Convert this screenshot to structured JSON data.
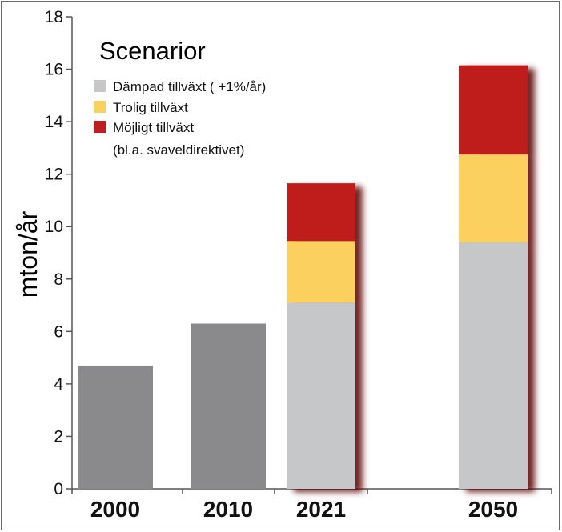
{
  "chart_data": {
    "type": "bar",
    "stacked": true,
    "title": "Scenarior",
    "ylabel": "mton/år",
    "ylim": [
      0,
      18
    ],
    "yticks": [
      "0",
      "2",
      "4",
      "6",
      "8",
      "10",
      "12",
      "14",
      "16",
      "18"
    ],
    "categories": [
      "2000",
      "2010",
      "2021",
      "2050"
    ],
    "historical": {
      "values": [
        4.7,
        6.3,
        null,
        null
      ],
      "color": "#8a8a8c"
    },
    "series": [
      {
        "name": "Dämpad tillväxt ( +1%/år)",
        "values": [
          null,
          null,
          7.1,
          9.4
        ],
        "color": "#c6c7c9"
      },
      {
        "name": "Trolig tillväxt",
        "values": [
          null,
          null,
          2.35,
          3.35
        ],
        "color": "#fcd05f"
      },
      {
        "name": "Möjligt tillväxt",
        "values": [
          null,
          null,
          2.2,
          3.4
        ],
        "color": "#bf1e1e"
      }
    ],
    "legend": {
      "position": "top-left",
      "note": "(bl.a. svaveldirektivet)"
    },
    "grid": false
  }
}
